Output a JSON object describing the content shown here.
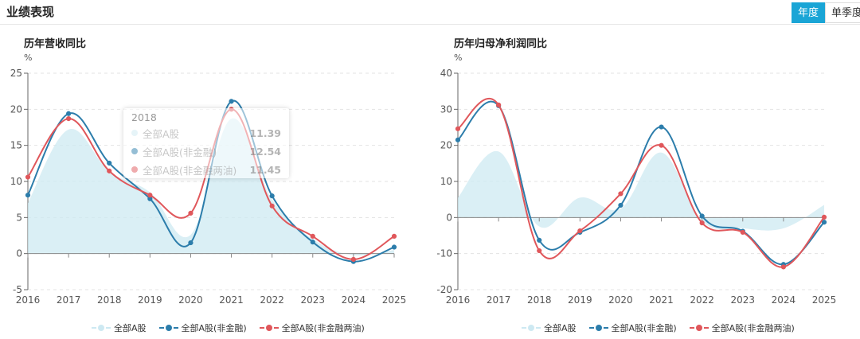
{
  "header": {
    "title": "业绩表现"
  },
  "toggle": {
    "annual": "年度",
    "quarterly": "单季度"
  },
  "colors": {
    "area": "#cde9f2",
    "blue": "#2c7dab",
    "red": "#e0575b",
    "active": "#1aa5d6"
  },
  "legend": [
    "全部A股",
    "全部A股(非金融)",
    "全部A股(非金融两油)"
  ],
  "tooltip": {
    "year": "2018",
    "rows": [
      {
        "name": "全部A股",
        "value": "11.39"
      },
      {
        "name": "全部A股(非金融)",
        "value": "12.54"
      },
      {
        "name": "全部A股(非金融两油)",
        "value": "11.45"
      }
    ]
  },
  "chart_data": [
    {
      "type": "line",
      "title": "历年营收同比",
      "ylabel": "%",
      "categories": [
        "2016",
        "2017",
        "2018",
        "2019",
        "2020",
        "2021",
        "2022",
        "2023",
        "2024",
        "2025"
      ],
      "yticks": [
        "-5",
        "0",
        "5",
        "10",
        "15",
        "20",
        "25"
      ],
      "ylim": [
        -5,
        25
      ],
      "series": [
        {
          "name": "全部A股",
          "style": "area",
          "values": [
            7.0,
            17.2,
            11.39,
            8.5,
            2.6,
            18.7,
            7.5,
            2.0,
            -0.2,
            0.5
          ]
        },
        {
          "name": "全部A股(非金融)",
          "style": "line",
          "values": [
            8.1,
            19.4,
            12.54,
            7.6,
            1.5,
            21.1,
            8.0,
            1.6,
            -1.1,
            0.9
          ]
        },
        {
          "name": "全部A股(非金融两油)",
          "style": "line",
          "values": [
            10.6,
            18.7,
            11.45,
            8.1,
            5.6,
            20.0,
            6.6,
            2.4,
            -0.8,
            2.4
          ]
        }
      ]
    },
    {
      "type": "line",
      "title": "历年归母净利润同比",
      "ylabel": "%",
      "categories": [
        "2016",
        "2017",
        "2018",
        "2019",
        "2020",
        "2021",
        "2022",
        "2023",
        "2024",
        "2025"
      ],
      "yticks": [
        "-20",
        "-10",
        "0",
        "10",
        "20",
        "30",
        "40"
      ],
      "ylim": [
        -20,
        40
      ],
      "series": [
        {
          "name": "全部A股",
          "style": "area",
          "values": [
            5.5,
            18.3,
            -2.5,
            5.5,
            2.5,
            18.0,
            -1.0,
            -3.0,
            -3.0,
            3.5
          ]
        },
        {
          "name": "全部A股(非金融)",
          "style": "line",
          "values": [
            21.5,
            31.0,
            -6.3,
            -4.1,
            3.4,
            25.1,
            0.4,
            -3.8,
            -13.0,
            -1.3
          ]
        },
        {
          "name": "全部A股(非金融两油)",
          "style": "line",
          "values": [
            24.6,
            31.2,
            -9.2,
            -3.7,
            6.6,
            20.0,
            -1.5,
            -4.1,
            -13.7,
            0.1
          ]
        }
      ]
    }
  ]
}
